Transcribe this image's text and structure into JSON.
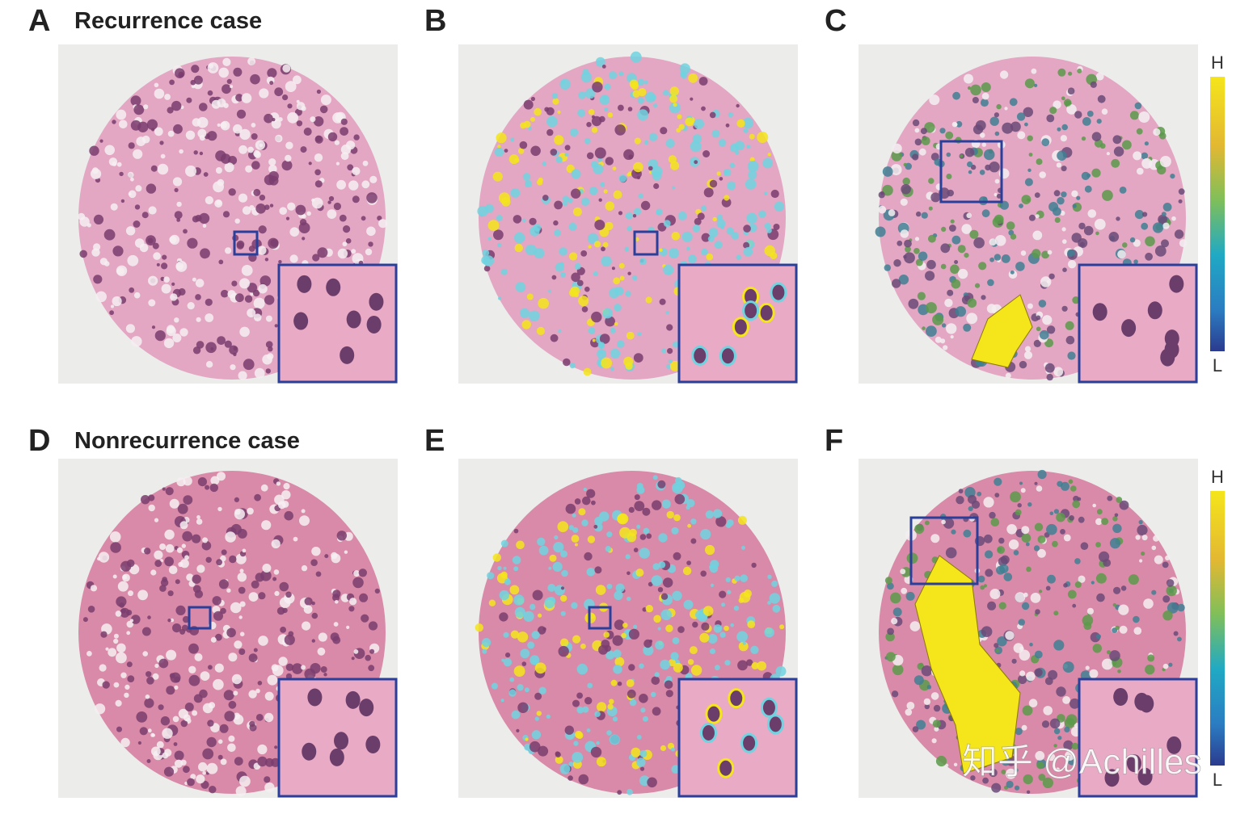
{
  "panels": [
    {
      "label": "A",
      "title": "Recurrence case"
    },
    {
      "label": "B"
    },
    {
      "label": "C",
      "colorbar": {
        "high": "H",
        "low": "L"
      }
    },
    {
      "label": "D",
      "title": "Nonrecurrence case"
    },
    {
      "label": "E"
    },
    {
      "label": "F",
      "colorbar": {
        "high": "H",
        "low": "L"
      }
    }
  ],
  "watermark": "知乎 @Achilles"
}
